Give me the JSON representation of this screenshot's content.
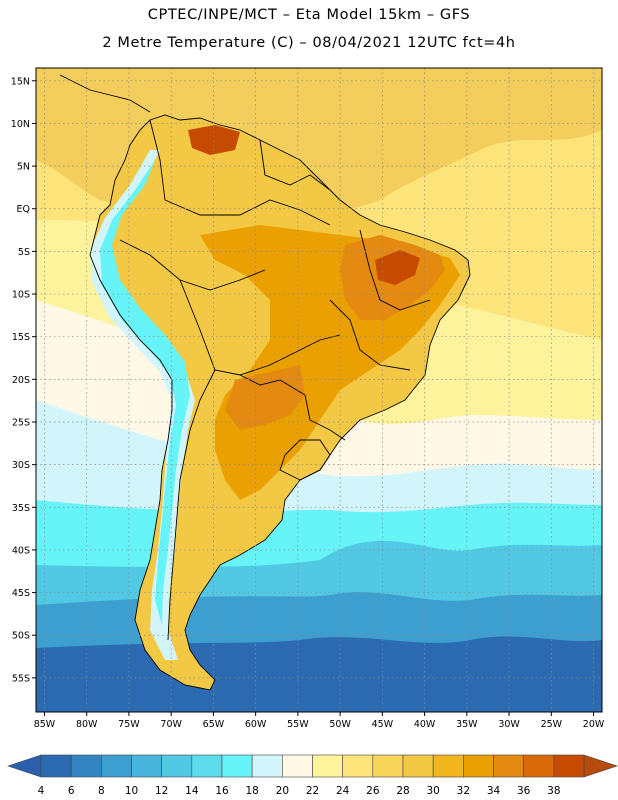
{
  "title": {
    "line1": "CPTEC/INPE/MCT –  Eta Model 15km – GFS",
    "line2": "2 Metre Temperature (C) – 08/04/2021 12UTC fct=4h"
  },
  "map": {
    "lon_range": [
      -86,
      -19
    ],
    "lat_range": [
      16.5,
      -59
    ],
    "lat_ticks": [
      {
        "value": 15,
        "label": "15N"
      },
      {
        "value": 10,
        "label": "10N"
      },
      {
        "value": 5,
        "label": "5N"
      },
      {
        "value": 0,
        "label": "EQ"
      },
      {
        "value": -5,
        "label": "5S"
      },
      {
        "value": -10,
        "label": "10S"
      },
      {
        "value": -15,
        "label": "15S"
      },
      {
        "value": -20,
        "label": "20S"
      },
      {
        "value": -25,
        "label": "25S"
      },
      {
        "value": -30,
        "label": "30S"
      },
      {
        "value": -35,
        "label": "35S"
      },
      {
        "value": -40,
        "label": "40S"
      },
      {
        "value": -45,
        "label": "45S"
      },
      {
        "value": -50,
        "label": "50S"
      },
      {
        "value": -55,
        "label": "55S"
      }
    ],
    "lon_ticks": [
      {
        "value": -85,
        "label": "85W"
      },
      {
        "value": -80,
        "label": "80W"
      },
      {
        "value": -75,
        "label": "75W"
      },
      {
        "value": -70,
        "label": "70W"
      },
      {
        "value": -65,
        "label": "65W"
      },
      {
        "value": -60,
        "label": "60W"
      },
      {
        "value": -55,
        "label": "55W"
      },
      {
        "value": -50,
        "label": "50W"
      },
      {
        "value": -45,
        "label": "45W"
      },
      {
        "value": -40,
        "label": "40W"
      },
      {
        "value": -35,
        "label": "35W"
      },
      {
        "value": -30,
        "label": "30W"
      },
      {
        "value": -25,
        "label": "25W"
      },
      {
        "value": -20,
        "label": "20W"
      }
    ]
  },
  "colorbar": {
    "colors": [
      "#2c6ab2",
      "#3385c1",
      "#3d9fcf",
      "#48b6dc",
      "#52c9e4",
      "#5ddcec",
      "#66f4f8",
      "#d2f4fb",
      "#fff8e6",
      "#fdf39c",
      "#fde47a",
      "#f7d55b",
      "#f3c845",
      "#f1b51e",
      "#eaa000",
      "#e48a10",
      "#d96a08",
      "#c64a02"
    ],
    "labels": [
      "4",
      "6",
      "8",
      "10",
      "12",
      "14",
      "16",
      "18",
      "20",
      "22",
      "24",
      "26",
      "28",
      "30",
      "32",
      "34",
      "36",
      "38"
    ],
    "under_color": "#2a5fae",
    "over_color": "#b84a0c"
  },
  "colors": {
    "sea_warm": "#f3ce5c",
    "sea_warm_light": "#fde47a",
    "sea_mild": "#fdf39c",
    "sea_cream": "#fff8e6",
    "sea_pale": "#d2f4fb",
    "sea_cyan": "#66f4f8",
    "sea_mid": "#52c9e4",
    "sea_blue": "#3d9fcf",
    "sea_deep": "#2c6ab2",
    "land_warm": "#f3c845",
    "land_hot": "#eaa000",
    "land_hotter": "#e48a10",
    "land_hottest": "#c64a02",
    "andes_cold": "#66f4f8",
    "andes_pale": "#d2f4fb",
    "border": "#000000"
  }
}
